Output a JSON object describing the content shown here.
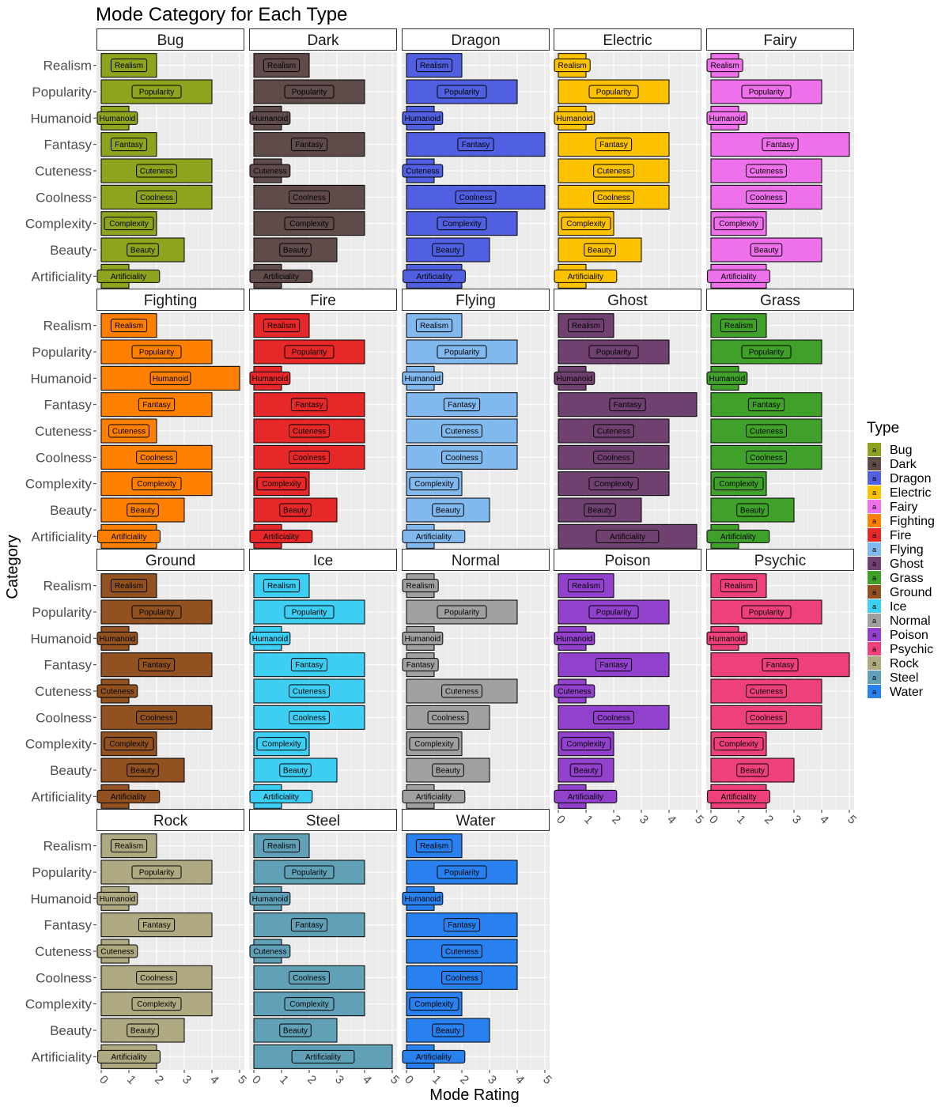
{
  "chart_data": {
    "type": "bar",
    "orientation": "horizontal",
    "facet": "Type",
    "title": "Mode Category for Each Type",
    "xlabel": "Mode Rating",
    "ylabel": "Category",
    "xlim": [
      0,
      5
    ],
    "x_ticks": [
      "0",
      "1",
      "2",
      "3",
      "4",
      "5"
    ],
    "categories": [
      "Realism",
      "Popularity",
      "Humanoid",
      "Fantasy",
      "Cuteness",
      "Coolness",
      "Complexity",
      "Beauty",
      "Artificiality"
    ],
    "legend": {
      "title": "Type",
      "position": "right",
      "key_glyph": "a"
    },
    "grid": true,
    "panels": [
      {
        "name": "Bug",
        "color": "#8fa31f",
        "values": [
          2,
          4,
          1,
          2,
          4,
          4,
          2,
          3,
          1
        ]
      },
      {
        "name": "Dark",
        "color": "#5f4b4a",
        "values": [
          2,
          4,
          1,
          4,
          1,
          4,
          4,
          3,
          1
        ]
      },
      {
        "name": "Dragon",
        "color": "#5060e0",
        "values": [
          2,
          4,
          1,
          5,
          1,
          5,
          4,
          3,
          2
        ]
      },
      {
        "name": "Electric",
        "color": "#fcc200",
        "values": [
          1,
          4,
          1,
          4,
          4,
          4,
          2,
          3,
          1
        ]
      },
      {
        "name": "Fairy",
        "color": "#ef70eb",
        "values": [
          1,
          4,
          1,
          5,
          4,
          4,
          2,
          4,
          2
        ]
      },
      {
        "name": "Fighting",
        "color": "#ff8000",
        "values": [
          2,
          4,
          5,
          4,
          2,
          4,
          4,
          3,
          2
        ]
      },
      {
        "name": "Fire",
        "color": "#e62829",
        "values": [
          2,
          4,
          1,
          4,
          4,
          4,
          2,
          3,
          1
        ]
      },
      {
        "name": "Flying",
        "color": "#81b9ef",
        "values": [
          2,
          4,
          1,
          4,
          4,
          4,
          2,
          3,
          1
        ]
      },
      {
        "name": "Ghost",
        "color": "#704170",
        "values": [
          2,
          4,
          1,
          5,
          4,
          4,
          4,
          3,
          5
        ]
      },
      {
        "name": "Grass",
        "color": "#3fa129",
        "values": [
          2,
          4,
          1,
          4,
          4,
          4,
          2,
          3,
          1
        ]
      },
      {
        "name": "Ground",
        "color": "#915121",
        "values": [
          2,
          4,
          1,
          4,
          1,
          4,
          2,
          3,
          1
        ]
      },
      {
        "name": "Ice",
        "color": "#3dcef3",
        "values": [
          2,
          4,
          1,
          4,
          4,
          4,
          2,
          3,
          1
        ]
      },
      {
        "name": "Normal",
        "color": "#9fa19f",
        "values": [
          1,
          4,
          1,
          1,
          4,
          3,
          2,
          3,
          1
        ]
      },
      {
        "name": "Poison",
        "color": "#9141cb",
        "values": [
          2,
          4,
          1,
          4,
          1,
          4,
          2,
          2,
          1
        ]
      },
      {
        "name": "Psychic",
        "color": "#ef4179",
        "values": [
          2,
          4,
          1,
          5,
          4,
          4,
          2,
          3,
          2
        ]
      },
      {
        "name": "Rock",
        "color": "#afa981",
        "values": [
          2,
          4,
          1,
          4,
          1,
          4,
          4,
          3,
          2
        ]
      },
      {
        "name": "Steel",
        "color": "#60a1b8",
        "values": [
          2,
          4,
          1,
          4,
          1,
          4,
          4,
          3,
          5
        ]
      },
      {
        "name": "Water",
        "color": "#2980ef",
        "values": [
          2,
          4,
          1,
          4,
          4,
          4,
          2,
          3,
          1
        ]
      }
    ]
  }
}
